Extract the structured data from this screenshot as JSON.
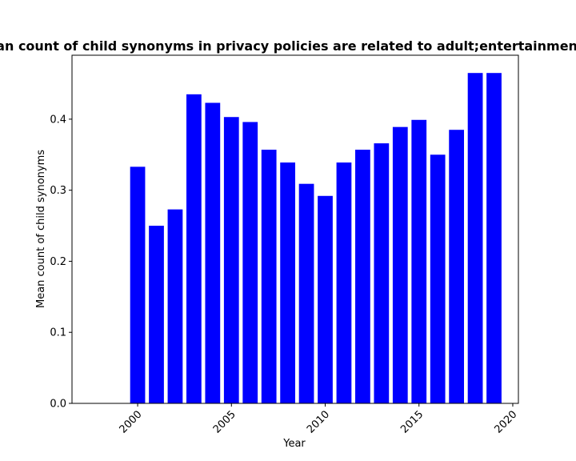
{
  "chart_data": {
    "type": "bar",
    "title": "Mean count of child synonyms in privacy policies are related to adult;entertainment",
    "xlabel": "Year",
    "ylabel": "Mean count of child synonyms",
    "x": [
      2000,
      2001,
      2002,
      2003,
      2004,
      2005,
      2006,
      2007,
      2008,
      2009,
      2010,
      2011,
      2012,
      2013,
      2014,
      2015,
      2016,
      2017,
      2018,
      2019
    ],
    "values": [
      0.333,
      0.25,
      0.273,
      0.435,
      0.423,
      0.403,
      0.396,
      0.357,
      0.339,
      0.309,
      0.292,
      0.339,
      0.357,
      0.366,
      0.389,
      0.399,
      0.35,
      0.385,
      0.465,
      0.465
    ],
    "xlim": [
      1996.5,
      2020.3
    ],
    "ylim": [
      0,
      0.49
    ],
    "xticks": [
      2000,
      2005,
      2010,
      2015,
      2020
    ],
    "yticks": [
      0.0,
      0.1,
      0.2,
      0.3,
      0.4
    ],
    "ytick_labels": [
      "0.0",
      "0.1",
      "0.2",
      "0.3",
      "0.4"
    ],
    "bar_color": "#0000ff",
    "grid": false,
    "legend": false
  }
}
